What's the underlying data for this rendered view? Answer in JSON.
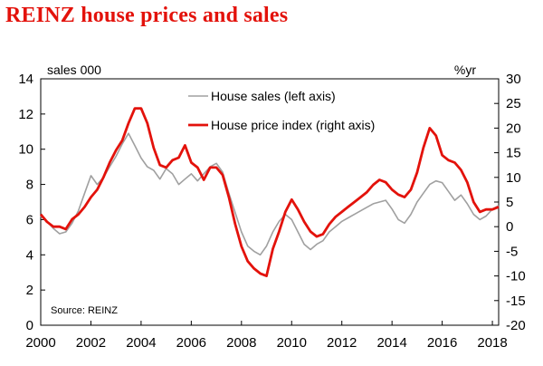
{
  "title": "REINZ house prices and sales",
  "chart_data": {
    "type": "line",
    "left_axis": {
      "unit": "sales 000",
      "ylim": [
        0,
        14
      ],
      "ticks": [
        "0",
        "2",
        "4",
        "6",
        "8",
        "10",
        "12",
        "14"
      ]
    },
    "right_axis": {
      "unit": "%yr",
      "ylim": [
        -20,
        30
      ],
      "ticks": [
        "-20",
        "-15",
        "-10",
        "-5",
        "0",
        "5",
        "10",
        "15",
        "20",
        "25",
        "30"
      ]
    },
    "x_axis": {
      "xlim": [
        2000,
        2018.25
      ],
      "ticks": [
        "2000",
        "2002",
        "2004",
        "2006",
        "2008",
        "2010",
        "2012",
        "2014",
        "2016",
        "2018"
      ]
    },
    "legend_position": "top-center",
    "grid": false,
    "source": "Source: REINZ",
    "series": [
      {
        "name": "House sales (left axis)",
        "axis": "left",
        "color": "#a0a0a0",
        "points": [
          [
            2000.0,
            6.2
          ],
          [
            2000.25,
            5.9
          ],
          [
            2000.5,
            5.5
          ],
          [
            2000.75,
            5.2
          ],
          [
            2001.0,
            5.3
          ],
          [
            2001.25,
            5.8
          ],
          [
            2001.5,
            6.5
          ],
          [
            2001.75,
            7.5
          ],
          [
            2002.0,
            8.5
          ],
          [
            2002.25,
            8.0
          ],
          [
            2002.5,
            8.4
          ],
          [
            2002.75,
            9.0
          ],
          [
            2003.0,
            9.6
          ],
          [
            2003.25,
            10.3
          ],
          [
            2003.5,
            10.9
          ],
          [
            2003.75,
            10.2
          ],
          [
            2004.0,
            9.5
          ],
          [
            2004.25,
            9.0
          ],
          [
            2004.5,
            8.8
          ],
          [
            2004.75,
            8.3
          ],
          [
            2005.0,
            8.9
          ],
          [
            2005.25,
            8.6
          ],
          [
            2005.5,
            8.0
          ],
          [
            2005.75,
            8.3
          ],
          [
            2006.0,
            8.6
          ],
          [
            2006.25,
            8.2
          ],
          [
            2006.5,
            8.6
          ],
          [
            2006.75,
            9.0
          ],
          [
            2007.0,
            9.2
          ],
          [
            2007.25,
            8.7
          ],
          [
            2007.5,
            7.5
          ],
          [
            2007.75,
            6.4
          ],
          [
            2008.0,
            5.3
          ],
          [
            2008.25,
            4.5
          ],
          [
            2008.5,
            4.2
          ],
          [
            2008.75,
            4.0
          ],
          [
            2009.0,
            4.5
          ],
          [
            2009.25,
            5.3
          ],
          [
            2009.5,
            5.9
          ],
          [
            2009.75,
            6.3
          ],
          [
            2010.0,
            6.0
          ],
          [
            2010.25,
            5.3
          ],
          [
            2010.5,
            4.6
          ],
          [
            2010.75,
            4.3
          ],
          [
            2011.0,
            4.6
          ],
          [
            2011.25,
            4.8
          ],
          [
            2011.5,
            5.3
          ],
          [
            2011.75,
            5.6
          ],
          [
            2012.0,
            5.9
          ],
          [
            2012.25,
            6.1
          ],
          [
            2012.5,
            6.3
          ],
          [
            2012.75,
            6.5
          ],
          [
            2013.0,
            6.7
          ],
          [
            2013.25,
            6.9
          ],
          [
            2013.5,
            7.0
          ],
          [
            2013.75,
            7.1
          ],
          [
            2014.0,
            6.6
          ],
          [
            2014.25,
            6.0
          ],
          [
            2014.5,
            5.8
          ],
          [
            2014.75,
            6.3
          ],
          [
            2015.0,
            7.0
          ],
          [
            2015.25,
            7.5
          ],
          [
            2015.5,
            8.0
          ],
          [
            2015.75,
            8.2
          ],
          [
            2016.0,
            8.1
          ],
          [
            2016.25,
            7.6
          ],
          [
            2016.5,
            7.1
          ],
          [
            2016.75,
            7.4
          ],
          [
            2017.0,
            6.9
          ],
          [
            2017.25,
            6.3
          ],
          [
            2017.5,
            6.0
          ],
          [
            2017.75,
            6.2
          ],
          [
            2018.0,
            6.6
          ],
          [
            2018.25,
            6.8
          ]
        ]
      },
      {
        "name": "House price index (right axis)",
        "axis": "right",
        "color": "#e3120b",
        "points": [
          [
            2000.0,
            2.5
          ],
          [
            2000.25,
            1.0
          ],
          [
            2000.5,
            0.0
          ],
          [
            2000.75,
            0.0
          ],
          [
            2001.0,
            -0.5
          ],
          [
            2001.25,
            1.5
          ],
          [
            2001.5,
            2.5
          ],
          [
            2001.75,
            4.0
          ],
          [
            2002.0,
            6.0
          ],
          [
            2002.25,
            7.5
          ],
          [
            2002.5,
            10.0
          ],
          [
            2002.75,
            13.0
          ],
          [
            2003.0,
            15.5
          ],
          [
            2003.25,
            17.5
          ],
          [
            2003.5,
            21.0
          ],
          [
            2003.75,
            24.0
          ],
          [
            2004.0,
            24.0
          ],
          [
            2004.25,
            21.0
          ],
          [
            2004.5,
            16.0
          ],
          [
            2004.75,
            12.5
          ],
          [
            2005.0,
            12.0
          ],
          [
            2005.25,
            13.5
          ],
          [
            2005.5,
            14.0
          ],
          [
            2005.75,
            16.5
          ],
          [
            2006.0,
            13.0
          ],
          [
            2006.25,
            12.0
          ],
          [
            2006.5,
            9.5
          ],
          [
            2006.75,
            12.0
          ],
          [
            2007.0,
            12.0
          ],
          [
            2007.25,
            10.5
          ],
          [
            2007.5,
            6.0
          ],
          [
            2007.75,
            0.5
          ],
          [
            2008.0,
            -4.0
          ],
          [
            2008.25,
            -7.0
          ],
          [
            2008.5,
            -8.5
          ],
          [
            2008.75,
            -9.5
          ],
          [
            2009.0,
            -10.0
          ],
          [
            2009.25,
            -4.5
          ],
          [
            2009.5,
            -1.0
          ],
          [
            2009.75,
            3.0
          ],
          [
            2010.0,
            5.5
          ],
          [
            2010.25,
            3.5
          ],
          [
            2010.5,
            1.0
          ],
          [
            2010.75,
            -1.0
          ],
          [
            2011.0,
            -2.0
          ],
          [
            2011.25,
            -1.5
          ],
          [
            2011.5,
            0.5
          ],
          [
            2011.75,
            2.0
          ],
          [
            2012.0,
            3.0
          ],
          [
            2012.25,
            4.0
          ],
          [
            2012.5,
            5.0
          ],
          [
            2012.75,
            6.0
          ],
          [
            2013.0,
            7.0
          ],
          [
            2013.25,
            8.5
          ],
          [
            2013.5,
            9.5
          ],
          [
            2013.75,
            9.0
          ],
          [
            2014.0,
            7.5
          ],
          [
            2014.25,
            6.5
          ],
          [
            2014.5,
            6.0
          ],
          [
            2014.75,
            7.5
          ],
          [
            2015.0,
            11.0
          ],
          [
            2015.25,
            16.0
          ],
          [
            2015.5,
            20.0
          ],
          [
            2015.75,
            18.5
          ],
          [
            2016.0,
            14.5
          ],
          [
            2016.25,
            13.5
          ],
          [
            2016.5,
            13.0
          ],
          [
            2016.75,
            11.5
          ],
          [
            2017.0,
            9.0
          ],
          [
            2017.25,
            5.0
          ],
          [
            2017.5,
            3.0
          ],
          [
            2017.75,
            3.5
          ],
          [
            2018.0,
            3.5
          ],
          [
            2018.25,
            4.0
          ]
        ]
      }
    ]
  }
}
